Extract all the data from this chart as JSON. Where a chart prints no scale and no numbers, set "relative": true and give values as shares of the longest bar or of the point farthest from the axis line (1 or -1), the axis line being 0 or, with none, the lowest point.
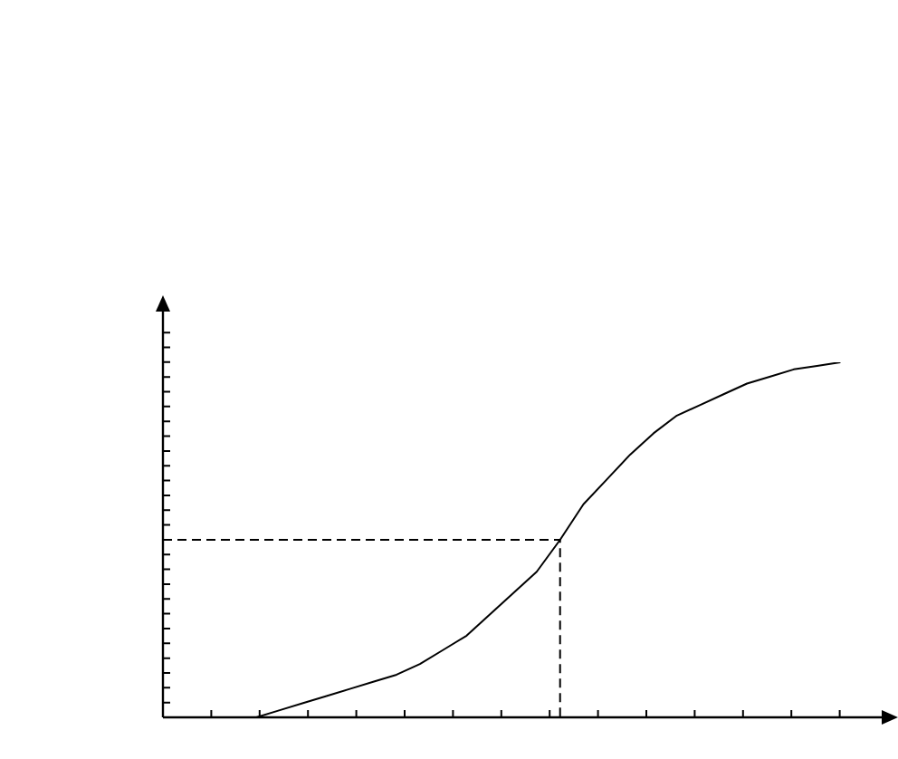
{
  "chart_data": {
    "type": "line",
    "relative": true,
    "categories": [
      null,
      null,
      null,
      null,
      null,
      null,
      null,
      null,
      null,
      null,
      null,
      null,
      null,
      null,
      null,
      null,
      null,
      null,
      null,
      null,
      null,
      null,
      null,
      null,
      null,
      null,
      null,
      null,
      null,
      null,
      null,
      null
    ],
    "series": [
      {
        "color": "#000000",
        "values": [
          null,
          null,
          null,
          null,
          0,
          0.02,
          0.04,
          0.06,
          0.08,
          0.1,
          0.12,
          0.15,
          0.19,
          0.23,
          0.29,
          0.35,
          0.41,
          0.5,
          0.6,
          0.67,
          0.74,
          0.8,
          0.85,
          0.88,
          0.91,
          0.94,
          0.96,
          0.98,
          0.99,
          1,
          null,
          null
        ]
      }
    ],
    "ref_lines": [
      {
        "axis": "y",
        "value": 0.5,
        "color": "#000000",
        "line_style": "dashed"
      }
    ],
    "legend": false,
    "marker": "none",
    "line_style": "solid"
  }
}
